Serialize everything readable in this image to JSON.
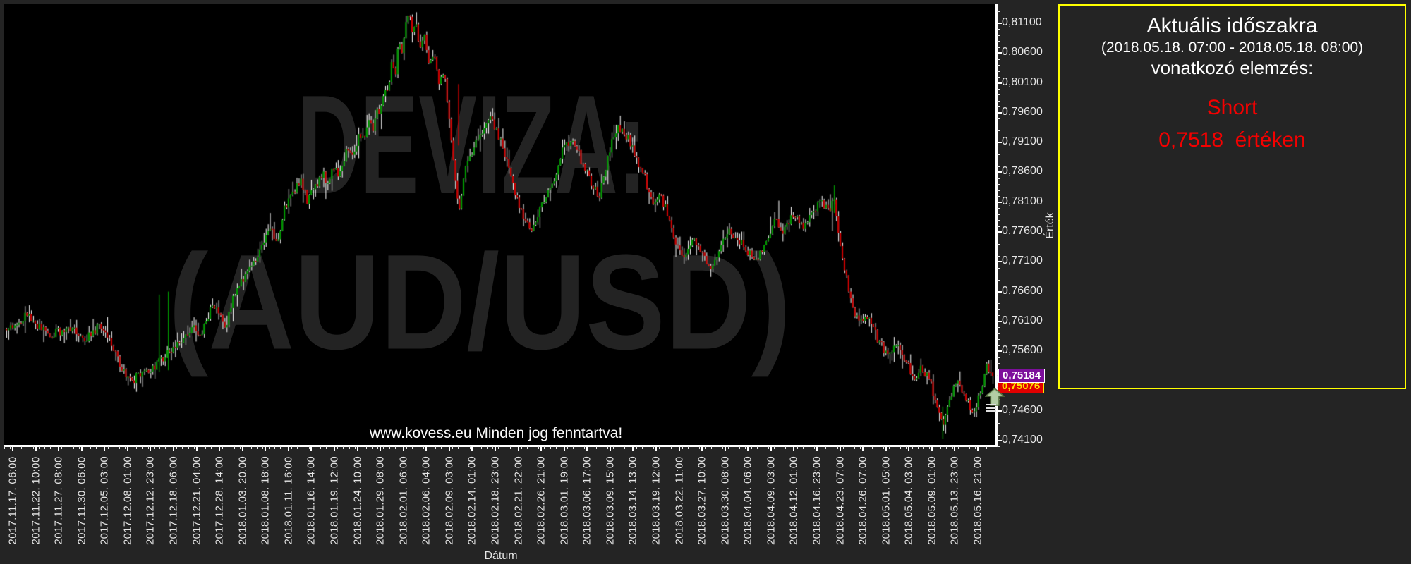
{
  "page": {
    "background": "#242424"
  },
  "panel": {
    "title": "Aktuális időszakra",
    "period": "(2018.05.18. 07:00 - 2018.05.18. 08:00)",
    "subtitle": "vonatkozó elemzés:",
    "signal": "Short",
    "signal_value_line": "0,7518  értéken",
    "border_color": "#ffff00",
    "signal_color": "#f50000"
  },
  "chart_data": {
    "type": "candlestick",
    "watermark_line1": "DEVIZA:",
    "watermark_line2": "(AUD/USD)",
    "copyright": "www.kovess.eu Minden jog fenntartva!",
    "xlabel": "Dátum",
    "ylabel": "Érték",
    "ylim": [
      0.7398,
      0.8143
    ],
    "y_major_step": 0.005,
    "y_minor_step": 0.001,
    "grid": false,
    "last_price_label": "0,75184",
    "signal_price_label": "0,75076",
    "colors": {
      "up": "#009900",
      "down": "#cc0000",
      "wick": "#ffffff",
      "last_price_bg": "#7d0f9b",
      "signal_bg": "#e00000",
      "panel_border": "#ffff00",
      "axis": "#ffffff"
    },
    "y_tick_labels": [
      "0,81100",
      "0,80600",
      "0,80100",
      "0,79600",
      "0,79100",
      "0,78600",
      "0,78100",
      "0,77600",
      "0,77100",
      "0,76600",
      "0,76100",
      "0,75600",
      "0,75100",
      "0,74600",
      "0,74100"
    ],
    "x_tick_labels": [
      "2017.11.17. 06:00",
      "2017.11.22. 10:00",
      "2017.11.27. 08:00",
      "2017.11.30. 06:00",
      "2017.12.05. 03:00",
      "2017.12.08. 01:00",
      "2017.12.12. 23:00",
      "2017.12.18. 06:00",
      "2017.12.21. 04:00",
      "2017.12.28. 14:00",
      "2018.01.03. 20:00",
      "2018.01.08. 18:00",
      "2018.01.11. 16:00",
      "2018.01.16. 14:00",
      "2018.01.19. 12:00",
      "2018.01.24. 10:00",
      "2018.01.29. 08:00",
      "2018.02.01. 06:00",
      "2018.02.06. 04:00",
      "2018.02.09. 03:00",
      "2018.02.14. 01:00",
      "2018.02.18. 23:00",
      "2018.02.21. 22:00",
      "2018.02.26. 21:00",
      "2018.03.01. 19:00",
      "2018.03.06. 17:00",
      "2018.03.09. 15:00",
      "2018.03.14. 13:00",
      "2018.03.19. 12:00",
      "2018.03.22. 11:00",
      "2018.03.27. 10:00",
      "2018.03.30. 08:00",
      "2018.04.04. 06:00",
      "2018.04.09. 03:00",
      "2018.04.12. 01:00",
      "2018.04.16. 23:00",
      "2018.04.23. 07:00",
      "2018.04.26. 07:00",
      "2018.05.01. 05:00",
      "2018.05.04. 03:00",
      "2018.05.09. 01:00",
      "2018.05.13. 23:00",
      "2018.05.16. 21:00"
    ],
    "price_path": [
      [
        0.0,
        0.7598
      ],
      [
        0.021,
        0.762
      ],
      [
        0.044,
        0.7588
      ],
      [
        0.063,
        0.76
      ],
      [
        0.081,
        0.7581
      ],
      [
        0.097,
        0.7605
      ],
      [
        0.116,
        0.7533
      ],
      [
        0.127,
        0.7513
      ],
      [
        0.136,
        0.7518
      ],
      [
        0.148,
        0.7532
      ],
      [
        0.154,
        0.754
      ],
      [
        0.163,
        0.7556
      ],
      [
        0.182,
        0.7586
      ],
      [
        0.19,
        0.7605
      ],
      [
        0.197,
        0.758
      ],
      [
        0.206,
        0.7629
      ],
      [
        0.213,
        0.7636
      ],
      [
        0.222,
        0.76
      ],
      [
        0.232,
        0.766
      ],
      [
        0.24,
        0.768
      ],
      [
        0.25,
        0.7707
      ],
      [
        0.256,
        0.772
      ],
      [
        0.263,
        0.775
      ],
      [
        0.268,
        0.7769
      ],
      [
        0.273,
        0.7735
      ],
      [
        0.282,
        0.78
      ],
      [
        0.291,
        0.7826
      ],
      [
        0.298,
        0.7845
      ],
      [
        0.305,
        0.7813
      ],
      [
        0.314,
        0.7839
      ],
      [
        0.321,
        0.786
      ],
      [
        0.325,
        0.7835
      ],
      [
        0.332,
        0.7873
      ],
      [
        0.336,
        0.7853
      ],
      [
        0.346,
        0.7905
      ],
      [
        0.35,
        0.788
      ],
      [
        0.358,
        0.793
      ],
      [
        0.362,
        0.7912
      ],
      [
        0.367,
        0.7949
      ],
      [
        0.371,
        0.7929
      ],
      [
        0.376,
        0.7975
      ],
      [
        0.379,
        0.7957
      ],
      [
        0.383,
        0.8002
      ],
      [
        0.386,
        0.7988
      ],
      [
        0.391,
        0.8045
      ],
      [
        0.394,
        0.8022
      ],
      [
        0.398,
        0.8085
      ],
      [
        0.401,
        0.8062
      ],
      [
        0.405,
        0.811
      ],
      [
        0.408,
        0.8128
      ],
      [
        0.412,
        0.809
      ],
      [
        0.415,
        0.8108
      ],
      [
        0.42,
        0.8062
      ],
      [
        0.424,
        0.8088
      ],
      [
        0.429,
        0.8038
      ],
      [
        0.433,
        0.806
      ],
      [
        0.438,
        0.8008
      ],
      [
        0.443,
        0.8032
      ],
      [
        0.449,
        0.7952
      ],
      [
        0.452,
        0.7888
      ],
      [
        0.456,
        0.7838
      ],
      [
        0.459,
        0.7802
      ],
      [
        0.465,
        0.7862
      ],
      [
        0.472,
        0.7895
      ],
      [
        0.48,
        0.7928
      ],
      [
        0.492,
        0.795
      ],
      [
        0.5,
        0.7915
      ],
      [
        0.51,
        0.7872
      ],
      [
        0.519,
        0.7802
      ],
      [
        0.533,
        0.7765
      ],
      [
        0.542,
        0.7802
      ],
      [
        0.556,
        0.7847
      ],
      [
        0.564,
        0.79
      ],
      [
        0.574,
        0.7915
      ],
      [
        0.587,
        0.7863
      ],
      [
        0.601,
        0.7817
      ],
      [
        0.615,
        0.7923
      ],
      [
        0.624,
        0.7937
      ],
      [
        0.633,
        0.7908
      ],
      [
        0.642,
        0.7862
      ],
      [
        0.648,
        0.7847
      ],
      [
        0.655,
        0.7802
      ],
      [
        0.662,
        0.7825
      ],
      [
        0.67,
        0.7794
      ],
      [
        0.679,
        0.7741
      ],
      [
        0.688,
        0.7711
      ],
      [
        0.697,
        0.7749
      ],
      [
        0.706,
        0.7719
      ],
      [
        0.715,
        0.7696
      ],
      [
        0.724,
        0.7741
      ],
      [
        0.733,
        0.7765
      ],
      [
        0.746,
        0.7738
      ],
      [
        0.761,
        0.7711
      ],
      [
        0.771,
        0.7752
      ],
      [
        0.779,
        0.7779
      ],
      [
        0.788,
        0.7762
      ],
      [
        0.798,
        0.7787
      ],
      [
        0.81,
        0.777
      ],
      [
        0.825,
        0.7809
      ],
      [
        0.833,
        0.7795
      ],
      [
        0.839,
        0.7817
      ],
      [
        0.848,
        0.7711
      ],
      [
        0.857,
        0.7636
      ],
      [
        0.866,
        0.7606
      ],
      [
        0.874,
        0.7625
      ],
      [
        0.884,
        0.7576
      ],
      [
        0.893,
        0.7553
      ],
      [
        0.901,
        0.7575
      ],
      [
        0.911,
        0.7546
      ],
      [
        0.92,
        0.7515
      ],
      [
        0.928,
        0.7535
      ],
      [
        0.938,
        0.75
      ],
      [
        0.945,
        0.7455
      ],
      [
        0.949,
        0.7435
      ],
      [
        0.955,
        0.7475
      ],
      [
        0.963,
        0.7516
      ],
      [
        0.97,
        0.749
      ],
      [
        0.981,
        0.7452
      ],
      [
        0.989,
        0.7505
      ],
      [
        0.994,
        0.7535
      ],
      [
        1.0,
        0.7518
      ]
    ],
    "spikes": [
      {
        "t": 0.1545,
        "hi": 0.7655,
        "lo": 0.7525,
        "dir": "up"
      },
      {
        "t": 0.1638,
        "hi": 0.766,
        "lo": 0.7528,
        "dir": "up"
      },
      {
        "t": 0.458,
        "hi": 0.8008,
        "lo": 0.7905,
        "dir": "down"
      },
      {
        "t": 0.839,
        "hi": 0.7838,
        "lo": 0.7792,
        "dir": "up"
      },
      {
        "t": 0.949,
        "hi": 0.7467,
        "lo": 0.7413,
        "dir": "up"
      }
    ],
    "n_candles": 480,
    "seed": 20180518
  }
}
